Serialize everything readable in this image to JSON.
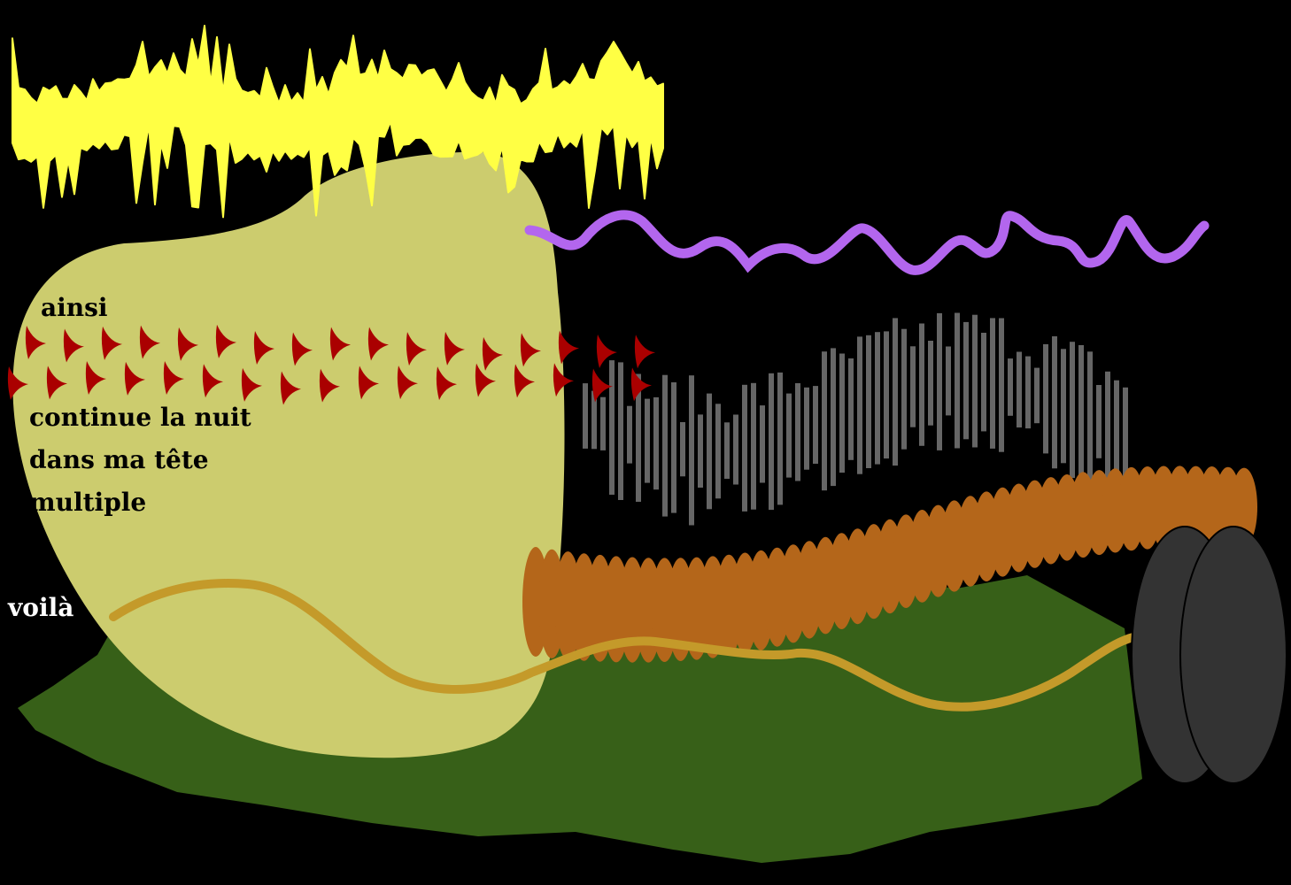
{
  "poem": {
    "line_ainsi": "ainsi",
    "line_continue": "continue la nuit",
    "line_dans": "dans ma tête",
    "line_multiple": "multiple",
    "line_voila": "voilà"
  },
  "colors": {
    "background": "#000000",
    "blob": "#cccc6e",
    "yellow_scribble": "#ffff44",
    "purple_wave": "#b366ee",
    "red_marks": "#aa0000",
    "grey_bars": "#666666",
    "brown_coil": "#b4661a",
    "ochre_wave": "#c49a2a",
    "green_ground": "#376018",
    "discs": "#333333",
    "poem_text": "#000000",
    "voila_text": "#ffffff"
  }
}
